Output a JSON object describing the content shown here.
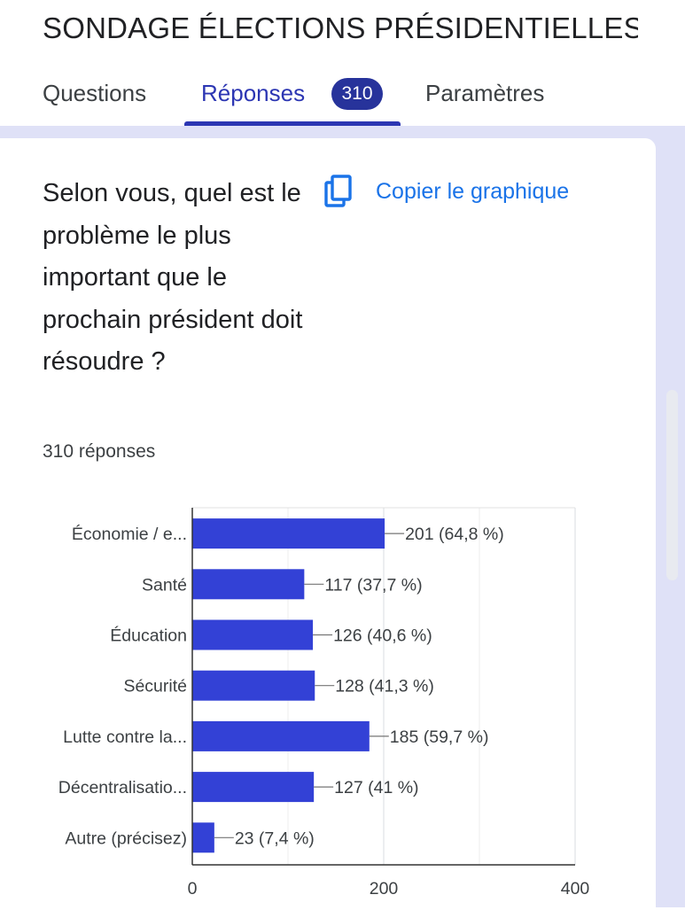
{
  "form": {
    "title": "SONDAGE ÉLECTIONS PRÉSIDENTIELLES C"
  },
  "tabs": {
    "questions": "Questions",
    "responses": "Réponses",
    "responses_badge": "310",
    "settings": "Paramètres"
  },
  "question": {
    "text": "Selon vous, quel est le problème le plus important que le prochain président doit résoudre ?",
    "responses_count": "310 réponses",
    "copy_chart_label": "Copier le graphique"
  },
  "colors": {
    "accent": "#2c36b3",
    "bar": "#3341d6",
    "badge": "#27339b",
    "link": "#1a73e8",
    "backdrop": "#dfe1f7"
  },
  "icons": {
    "copy": "copy-icon"
  },
  "chart_data": {
    "type": "bar",
    "orientation": "horizontal",
    "categories": [
      "Économie / e...",
      "Santé",
      "Éducation",
      "Sécurité",
      "Lutte contre la...",
      "Décentralisatio...",
      "Autre (précisez)"
    ],
    "values": [
      201,
      117,
      126,
      128,
      185,
      127,
      23
    ],
    "data_labels": [
      "201 (64,8 %)",
      "117 (37,7 %)",
      "126 (40,6 %)",
      "128 (41,3 %)",
      "185 (59,7 %)",
      "127 (41 %)",
      "23 (7,4 %)"
    ],
    "xlim": [
      0,
      400
    ],
    "xticks": [
      0,
      200,
      400
    ],
    "grid": true
  }
}
